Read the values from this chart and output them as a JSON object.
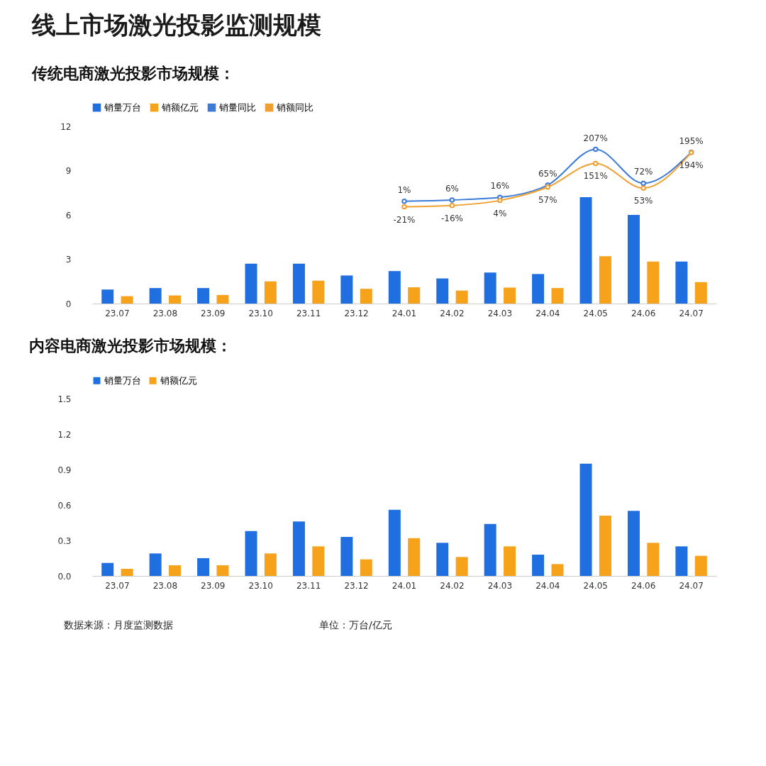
{
  "chart_data": [
    {
      "type": "bar",
      "title": "线上市场激光投影监测规模",
      "subtitle": "传统电商激光投影市场规模：",
      "categories": [
        "23.07",
        "23.08",
        "23.09",
        "23.10",
        "23.11",
        "23.12",
        "24.01",
        "24.02",
        "24.03",
        "24.04",
        "24.05",
        "24.06",
        "24.07"
      ],
      "series": [
        {
          "name": "销量万台",
          "color": "#1f6fe0",
          "values": [
            0.95,
            1.05,
            1.05,
            2.7,
            2.7,
            1.9,
            2.2,
            1.7,
            2.1,
            2.0,
            7.2,
            6.0,
            2.85
          ]
        },
        {
          "name": "销额亿元",
          "color": "#f7a21b",
          "values": [
            0.5,
            0.55,
            0.58,
            1.5,
            1.55,
            1.0,
            1.1,
            0.88,
            1.08,
            1.05,
            3.2,
            2.85,
            1.45
          ]
        },
        {
          "name": "销量同比",
          "type": "line",
          "axis": "y2",
          "color": "#3c7bd8",
          "values": [
            null,
            null,
            null,
            null,
            null,
            null,
            1,
            6,
            16,
            65,
            207,
            72,
            195
          ],
          "value_labels": [
            null,
            null,
            null,
            null,
            null,
            null,
            "1%",
            "6%",
            "16%",
            "65%",
            "207%",
            "72%",
            "195%"
          ]
        },
        {
          "name": "销额同比",
          "type": "line",
          "axis": "y2",
          "color": "#f0a030",
          "values": [
            null,
            null,
            null,
            null,
            null,
            null,
            -21,
            -16,
            4,
            57,
            151,
            53,
            194
          ],
          "value_labels": [
            null,
            null,
            null,
            null,
            null,
            null,
            "-21%",
            "-16%",
            "4%",
            "57%",
            "151%",
            "53%",
            "194%"
          ]
        }
      ],
      "ylim": [
        0,
        12
      ],
      "yticks": [
        0,
        3,
        6,
        9,
        12
      ],
      "grid": false,
      "legend": "top",
      "marker": "circle"
    },
    {
      "type": "bar",
      "title": "内容电商激光投影市场规模：",
      "categories": [
        "23.07",
        "23.08",
        "23.09",
        "23.10",
        "23.11",
        "23.12",
        "24.01",
        "24.02",
        "24.03",
        "24.04",
        "24.05",
        "24.06",
        "24.07"
      ],
      "series": [
        {
          "name": "销量万台",
          "color": "#1f6fe0",
          "values": [
            0.11,
            0.19,
            0.15,
            0.38,
            0.46,
            0.33,
            0.56,
            0.28,
            0.44,
            0.18,
            0.95,
            0.55,
            0.25
          ]
        },
        {
          "name": "销额亿元",
          "color": "#f7a21b",
          "values": [
            0.06,
            0.09,
            0.09,
            0.19,
            0.25,
            0.14,
            0.32,
            0.16,
            0.25,
            0.1,
            0.51,
            0.28,
            0.17
          ]
        }
      ],
      "ylim": [
        0,
        1.5
      ],
      "yticks": [
        {
          "value": 0,
          "label": "0.0"
        },
        {
          "value": 0.3,
          "label": "0.3"
        },
        {
          "value": 0.6,
          "label": "0.6"
        },
        {
          "value": 0.9,
          "label": "0.9"
        },
        {
          "value": 1.2,
          "label": "1.2"
        },
        {
          "value": 1.5,
          "label": "1.5"
        }
      ],
      "grid": false,
      "legend": "top",
      "annotations": [
        "数据来源：月度监测数据",
        "单位：万台/亿元"
      ]
    }
  ]
}
